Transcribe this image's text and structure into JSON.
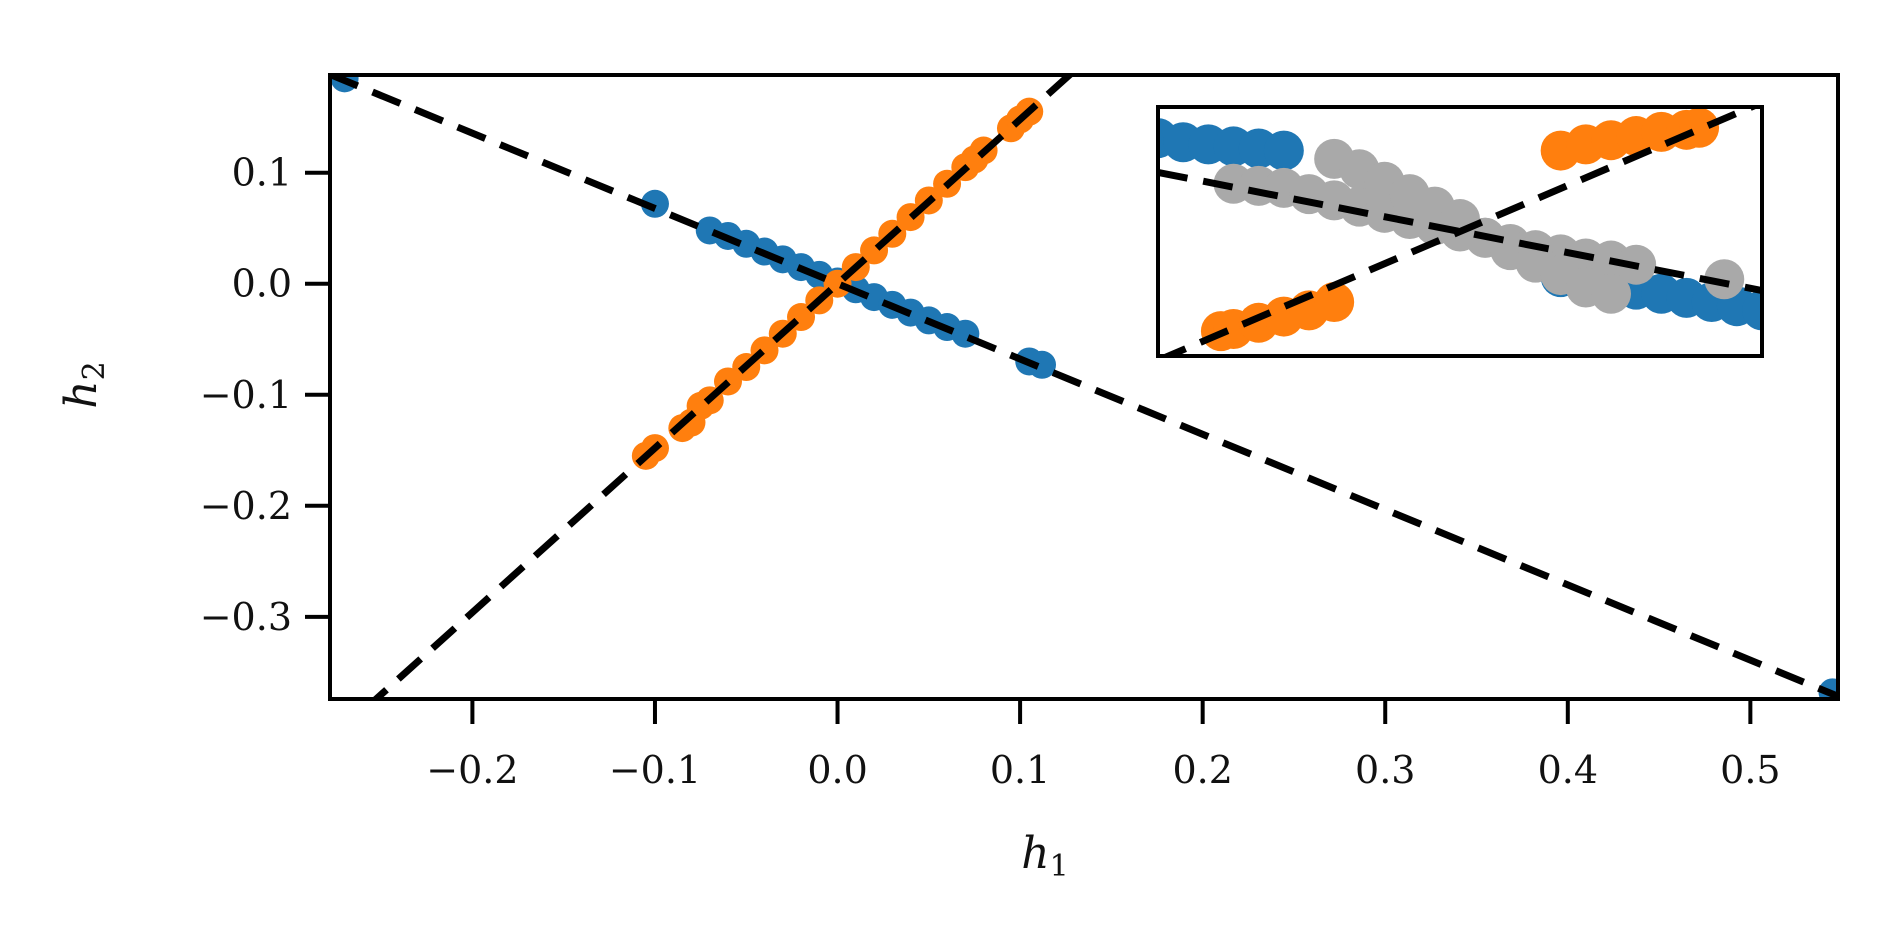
{
  "chart_data": {
    "type": "scatter",
    "xlabel": "h",
    "xlabel_sub": "1",
    "ylabel": "h",
    "ylabel_sub": "2",
    "xlim": [
      -0.278,
      0.548
    ],
    "ylim": [
      -0.374,
      0.188
    ],
    "x_ticks": [
      -0.2,
      -0.1,
      0.0,
      0.1,
      0.2,
      0.3,
      0.4,
      0.5
    ],
    "x_tick_labels": [
      "−0.2",
      "−0.1",
      "0.0",
      "0.1",
      "0.2",
      "0.3",
      "0.4",
      "0.5"
    ],
    "y_ticks": [
      0.1,
      0.0,
      -0.1,
      -0.2,
      -0.3
    ],
    "y_tick_labels": [
      "0.1",
      "0.0",
      "−0.1",
      "−0.2",
      "−0.3"
    ],
    "grid": false,
    "legend": "none",
    "colors": {
      "blue": "#1f77b4",
      "orange": "#ff7f0e",
      "gray": "#a9a9a9",
      "reference_line": "#000000"
    },
    "series": [
      {
        "color": "blue",
        "x": [
          -0.27,
          -0.1,
          -0.07,
          -0.06,
          -0.05,
          -0.04,
          -0.03,
          -0.02,
          -0.01,
          0.0,
          0.01,
          0.02,
          0.03,
          0.04,
          0.05,
          0.06,
          0.07,
          0.105,
          0.112,
          0.545
        ],
        "y": [
          0.185,
          0.072,
          0.048,
          0.043,
          0.036,
          0.029,
          0.022,
          0.015,
          0.008,
          0.002,
          -0.005,
          -0.012,
          -0.019,
          -0.026,
          -0.033,
          -0.039,
          -0.045,
          -0.07,
          -0.073,
          -0.368
        ]
      },
      {
        "color": "orange",
        "x": [
          -0.105,
          -0.1,
          -0.085,
          -0.08,
          -0.075,
          -0.07,
          -0.06,
          -0.05,
          -0.04,
          -0.03,
          -0.02,
          -0.01,
          0.0,
          0.01,
          0.02,
          0.03,
          0.04,
          0.05,
          0.06,
          0.07,
          0.075,
          0.08,
          0.095,
          0.1,
          0.105
        ],
        "y": [
          -0.155,
          -0.148,
          -0.13,
          -0.125,
          -0.11,
          -0.105,
          -0.088,
          -0.075,
          -0.06,
          -0.045,
          -0.03,
          -0.015,
          0.0,
          0.015,
          0.03,
          0.045,
          0.06,
          0.075,
          0.09,
          0.105,
          0.112,
          0.12,
          0.14,
          0.148,
          0.155
        ]
      }
    ],
    "reference_lines": [
      {
        "style": "dashed",
        "slope": 1.48,
        "intercept": 0.0
      },
      {
        "style": "dashed",
        "slope": -0.678,
        "intercept": 0.0
      }
    ],
    "inset": {
      "xlim": [
        -0.012,
        0.012
      ],
      "ylim": [
        -0.006,
        0.006
      ],
      "series": [
        {
          "color": "blue",
          "x": [
            -0.012,
            -0.011,
            -0.01,
            -0.009,
            -0.008,
            -0.007,
            0.004,
            0.005,
            0.006,
            0.007,
            0.008,
            0.009,
            0.01,
            0.011,
            0.012
          ],
          "y": [
            0.0045,
            0.0043,
            0.0042,
            0.0041,
            0.004,
            0.0039,
            -0.0022,
            -0.0024,
            -0.0026,
            -0.0028,
            -0.003,
            -0.0032,
            -0.0034,
            -0.0036,
            -0.0038
          ]
        },
        {
          "color": "orange",
          "x": [
            -0.0095,
            -0.009,
            -0.008,
            -0.007,
            -0.006,
            -0.005,
            0.004,
            0.005,
            0.006,
            0.007,
            0.008,
            0.009,
            0.0095
          ],
          "y": [
            -0.0048,
            -0.0047,
            -0.0044,
            -0.0041,
            -0.0038,
            -0.0034,
            0.0039,
            0.0042,
            0.0044,
            0.0046,
            0.0048,
            0.0049,
            0.005
          ]
        },
        {
          "color": "gray",
          "x": [
            -0.009,
            -0.008,
            -0.007,
            -0.006,
            -0.005,
            -0.004,
            -0.003,
            -0.002,
            -0.001,
            0.0,
            0.001,
            0.002,
            0.003,
            0.004,
            0.005,
            0.006,
            0.007,
            -0.005,
            -0.004,
            -0.003,
            -0.002,
            -0.001,
            0.0,
            0.001,
            0.002,
            0.003,
            0.004,
            0.005,
            0.006,
            0.0105
          ],
          "y": [
            0.0023,
            0.0022,
            0.0021,
            0.0018,
            0.0015,
            0.0012,
            0.0009,
            0.0006,
            0.0003,
            0.0,
            -0.0003,
            -0.0006,
            -0.0009,
            -0.0011,
            -0.0013,
            -0.0014,
            -0.0016,
            0.0035,
            0.003,
            0.0024,
            0.0018,
            0.0012,
            0.0006,
            -0.0003,
            -0.0009,
            -0.0015,
            -0.0021,
            -0.0027,
            -0.003,
            -0.0023
          ]
        }
      ]
    }
  }
}
